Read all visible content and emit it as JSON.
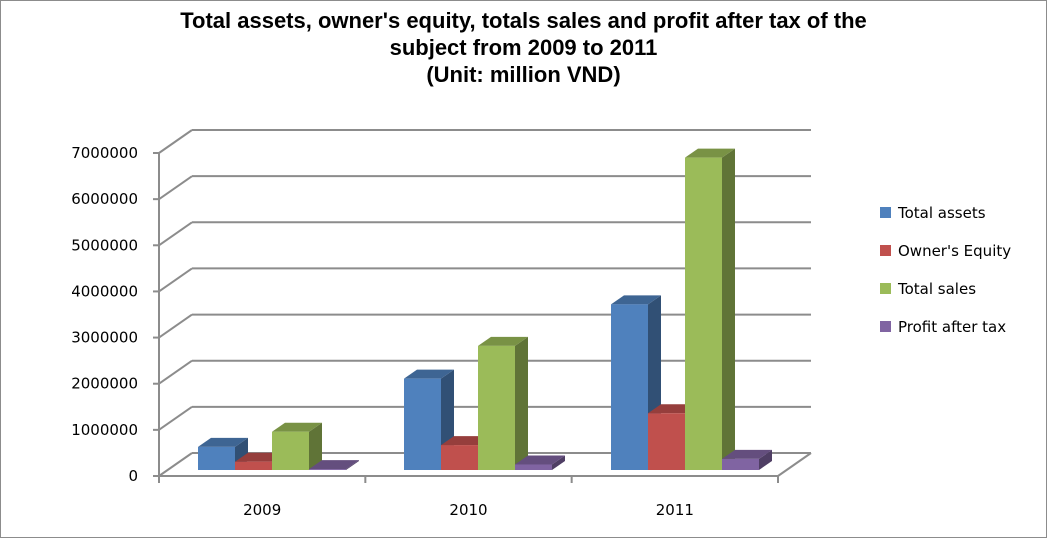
{
  "chart_data": {
    "type": "bar",
    "title_lines": [
      "Total assets, owner's equity, totals sales and profit after tax of the",
      "subject from 2009 to 2011",
      "(Unit: million VND)"
    ],
    "categories": [
      "2009",
      "2010",
      "2011"
    ],
    "series": [
      {
        "name": "Total assets",
        "color": "#4f81bd",
        "values": [
          500000,
          1980000,
          3590000
        ]
      },
      {
        "name": "Owner's Equity",
        "color": "#c0504d",
        "values": [
          180000,
          540000,
          1230000
        ]
      },
      {
        "name": "Total sales",
        "color": "#9bbb59",
        "values": [
          830000,
          2690000,
          6770000
        ]
      },
      {
        "name": "Profit after tax",
        "color": "#8064a2",
        "values": [
          20000,
          120000,
          240000
        ]
      }
    ],
    "ylim": [
      0,
      7000000
    ],
    "yticks": [
      "0",
      "1000000",
      "2000000",
      "3000000",
      "4000000",
      "5000000",
      "6000000",
      "7000000"
    ],
    "grid": true,
    "legend": "right",
    "style": "3d-clustered-column"
  }
}
